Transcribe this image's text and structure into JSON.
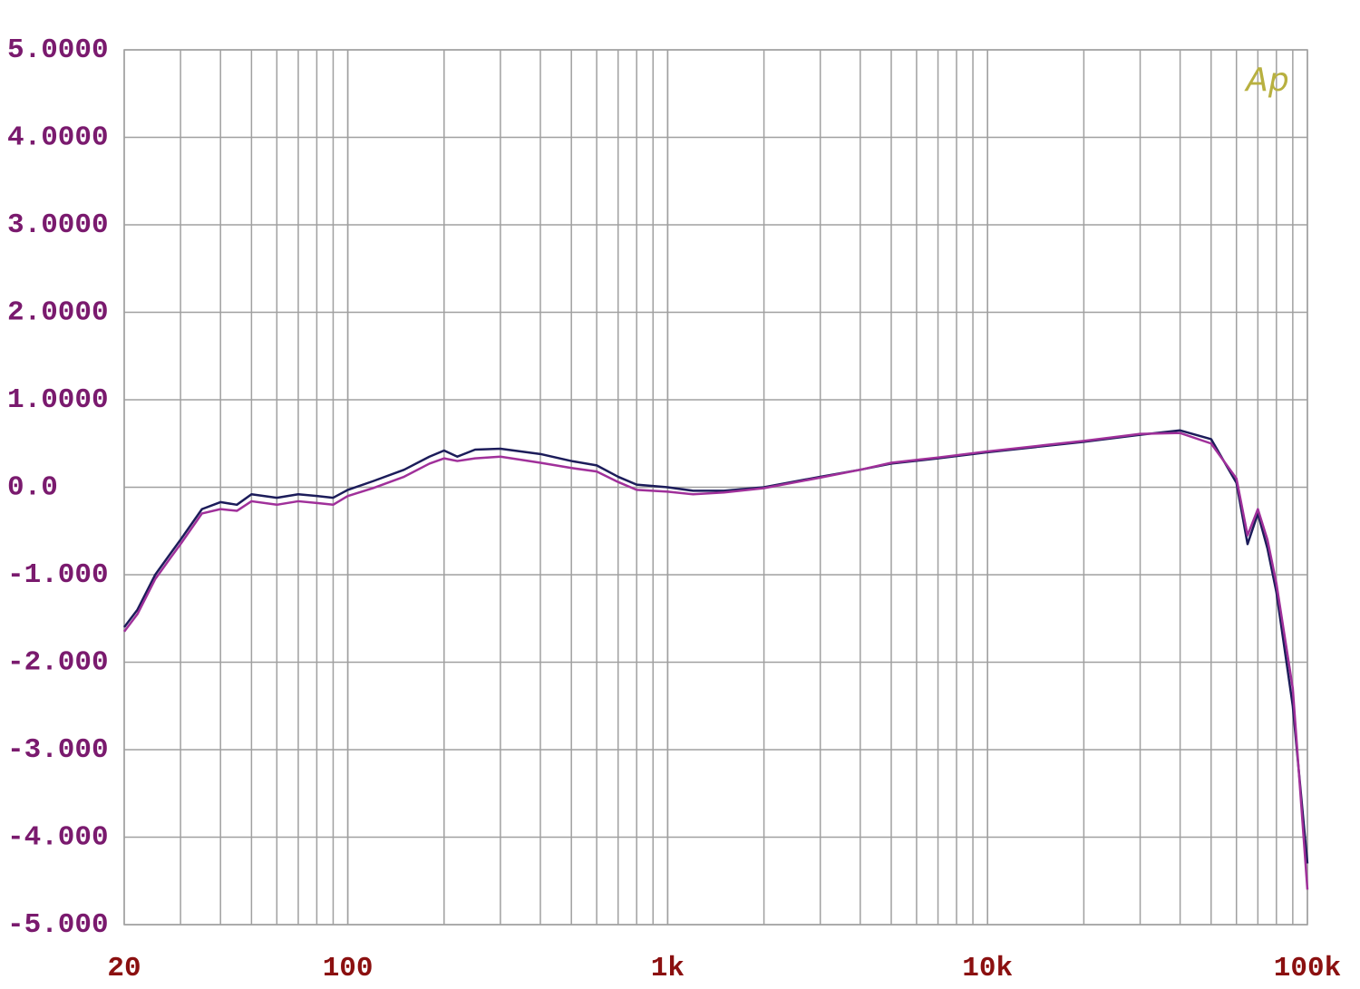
{
  "chart_data": {
    "type": "line",
    "annotation": "Ap",
    "annotation_color": "#b8b040",
    "x": [
      20,
      22,
      25,
      28,
      30,
      35,
      40,
      45,
      50,
      60,
      70,
      80,
      90,
      100,
      120,
      150,
      180,
      200,
      220,
      250,
      300,
      400,
      500,
      600,
      700,
      800,
      1000,
      1200,
      1500,
      2000,
      3000,
      4000,
      5000,
      7000,
      10000,
      15000,
      20000,
      30000,
      40000,
      50000,
      60000,
      65000,
      70000,
      75000,
      80000,
      90000,
      100000
    ],
    "series": [
      {
        "color": "#1c1c5a",
        "values": [
          -1.6,
          -1.4,
          -1.0,
          -0.75,
          -0.6,
          -0.25,
          -0.17,
          -0.2,
          -0.08,
          -0.12,
          -0.08,
          -0.1,
          -0.12,
          -0.03,
          0.07,
          0.2,
          0.35,
          0.42,
          0.35,
          0.43,
          0.44,
          0.38,
          0.3,
          0.25,
          0.12,
          0.03,
          0.0,
          -0.04,
          -0.04,
          0.0,
          0.12,
          0.2,
          0.27,
          0.33,
          0.4,
          0.47,
          0.52,
          0.6,
          0.65,
          0.55,
          0.05,
          -0.65,
          -0.3,
          -0.7,
          -1.2,
          -2.5,
          -4.3
        ]
      },
      {
        "color": "#a0309a",
        "values": [
          -1.65,
          -1.45,
          -1.05,
          -0.8,
          -0.65,
          -0.3,
          -0.25,
          -0.27,
          -0.16,
          -0.2,
          -0.16,
          -0.18,
          -0.2,
          -0.1,
          -0.01,
          0.12,
          0.27,
          0.33,
          0.3,
          0.33,
          0.35,
          0.28,
          0.22,
          0.18,
          0.06,
          -0.03,
          -0.05,
          -0.08,
          -0.06,
          -0.01,
          0.11,
          0.2,
          0.28,
          0.34,
          0.41,
          0.48,
          0.53,
          0.61,
          0.62,
          0.5,
          0.1,
          -0.55,
          -0.25,
          -0.6,
          -1.1,
          -2.3,
          -4.6
        ]
      }
    ],
    "xlim": [
      20,
      100000
    ],
    "xscale": "log",
    "xticks": [
      20,
      100,
      {
        "value": 1000,
        "label": "1k"
      },
      {
        "value": 10000,
        "label": "10k"
      },
      {
        "value": 100000,
        "label": "100k"
      }
    ],
    "ylim": [
      -5,
      5
    ],
    "yticks": [
      {
        "value": 5,
        "label": "5.0000"
      },
      {
        "value": 4,
        "label": "4.0000"
      },
      {
        "value": 3,
        "label": "3.0000"
      },
      {
        "value": 2,
        "label": "2.0000"
      },
      {
        "value": 1,
        "label": "1.0000"
      },
      {
        "value": 0,
        "label": "0.0"
      },
      {
        "value": -1,
        "label": "-1.000"
      },
      {
        "value": -2,
        "label": "-2.000"
      },
      {
        "value": -3,
        "label": "-3.000"
      },
      {
        "value": -4,
        "label": "-4.000"
      },
      {
        "value": -5,
        "label": "-5.000"
      }
    ],
    "grid": true
  }
}
